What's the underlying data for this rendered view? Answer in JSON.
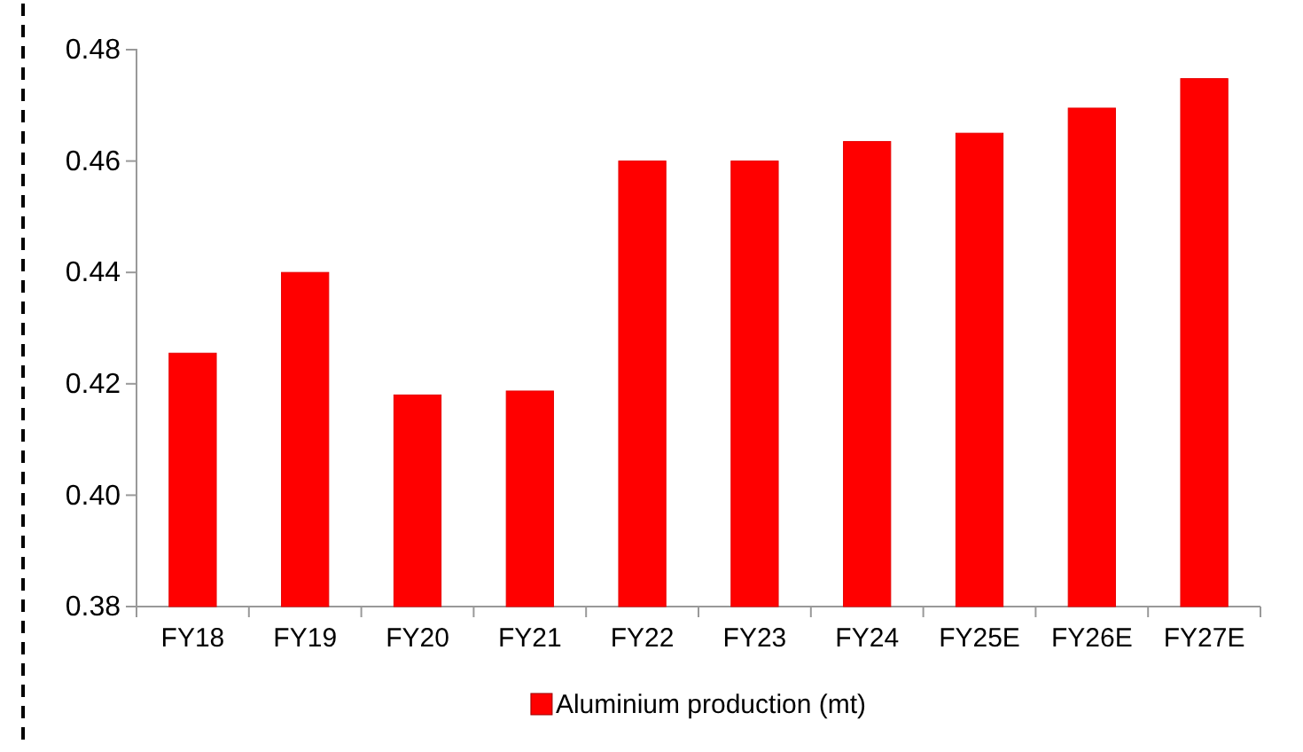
{
  "chart_data": {
    "type": "bar",
    "categories": [
      "FY18",
      "FY19",
      "FY20",
      "FY21",
      "FY22",
      "FY23",
      "FY24",
      "FY25E",
      "FY26E",
      "FY27E"
    ],
    "series": [
      {
        "name": "Aluminium production (mt)",
        "color": "#ff0000",
        "values": [
          0.4255,
          0.44,
          0.418,
          0.4187,
          0.46,
          0.46,
          0.4635,
          0.465,
          0.4695,
          0.4748
        ]
      }
    ],
    "ylim": [
      0.38,
      0.48
    ],
    "yticks": [
      {
        "value": 0.38,
        "label": "0.38"
      },
      {
        "value": 0.4,
        "label": "0.40"
      },
      {
        "value": 0.42,
        "label": "0.42"
      },
      {
        "value": 0.44,
        "label": "0.44"
      },
      {
        "value": 0.46,
        "label": "0.46"
      },
      {
        "value": 0.48,
        "label": "0.48"
      }
    ],
    "grid": false,
    "legend": "bottom"
  }
}
